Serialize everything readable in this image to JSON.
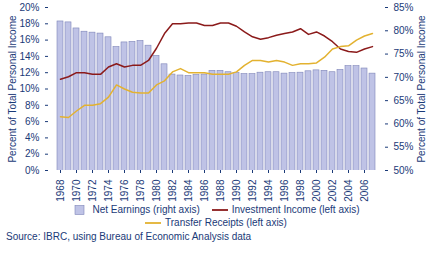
{
  "chart_data": {
    "type": "combo",
    "y_label": "Percent of Total Personal Income",
    "y2_label": "Percent of Total Personal Income",
    "source": "Source: IBRC, using Bureau of Economic Analysis data",
    "x": [
      1968,
      1969,
      1970,
      1971,
      1972,
      1973,
      1974,
      1975,
      1976,
      1977,
      1978,
      1979,
      1980,
      1981,
      1982,
      1983,
      1984,
      1985,
      1986,
      1987,
      1988,
      1989,
      1990,
      1991,
      1992,
      1993,
      1994,
      1995,
      1996,
      1997,
      1998,
      1999,
      2000,
      2001,
      2002,
      2003,
      2004,
      2005,
      2006,
      2007
    ],
    "xticks": [
      1968,
      1970,
      1972,
      1974,
      1976,
      1978,
      1980,
      1982,
      1984,
      1986,
      1988,
      1990,
      1992,
      1994,
      1996,
      1998,
      2000,
      2002,
      2004,
      2006
    ],
    "ylim": [
      0,
      20
    ],
    "yticks": [
      {
        "value": 0,
        "label": "0%"
      },
      {
        "value": 2,
        "label": "2%"
      },
      {
        "value": 4,
        "label": "4%"
      },
      {
        "value": 6,
        "label": "6%"
      },
      {
        "value": 8,
        "label": "8%"
      },
      {
        "value": 10,
        "label": "10%"
      },
      {
        "value": 12,
        "label": "12%"
      },
      {
        "value": 14,
        "label": "14%"
      },
      {
        "value": 16,
        "label": "16%"
      },
      {
        "value": 18,
        "label": "18%"
      },
      {
        "value": 20,
        "label": "20%"
      }
    ],
    "y2lim": [
      50,
      85
    ],
    "y2ticks": [
      {
        "value": 50,
        "label": "50%"
      },
      {
        "value": 55,
        "label": "55%"
      },
      {
        "value": 60,
        "label": "60%"
      },
      {
        "value": 65,
        "label": "65%"
      },
      {
        "value": 70,
        "label": "70%"
      },
      {
        "value": 75,
        "label": "75%"
      },
      {
        "value": 80,
        "label": "80%"
      },
      {
        "value": 85,
        "label": "85%"
      }
    ],
    "grid": false,
    "legend": "bottom",
    "series": [
      {
        "name": "Net Earnings (right axis)",
        "type": "bar",
        "axis": "y2",
        "color": "#bfc3e6",
        "values": [
          82,
          81.8,
          80.5,
          79.8,
          79.6,
          79.4,
          78.6,
          76.5,
          77.5,
          77.6,
          77.8,
          76.8,
          74.6,
          72.8,
          70.6,
          70.4,
          70.3,
          70.5,
          70.6,
          71.4,
          71.4,
          71.1,
          70.9,
          70.7,
          70.7,
          71.0,
          71.1,
          71.1,
          70.8,
          70.9,
          71.0,
          71.3,
          71.5,
          71.4,
          71.1,
          71.6,
          72.4,
          72.4,
          71.9,
          70.8
        ]
      },
      {
        "name": "Investment Income (left axis)",
        "type": "line",
        "color": "#8b1a1a",
        "values": [
          11.2,
          11.5,
          12.0,
          12.0,
          11.8,
          11.8,
          12.7,
          13.1,
          12.7,
          12.9,
          12.9,
          13.5,
          15.0,
          16.8,
          18.0,
          18.0,
          18.1,
          18.1,
          17.8,
          17.8,
          18.1,
          18.1,
          17.7,
          17.0,
          16.4,
          16.1,
          16.3,
          16.6,
          16.8,
          17.0,
          17.4,
          16.7,
          17.0,
          16.5,
          15.8,
          14.9,
          14.6,
          14.5,
          14.9,
          15.2
        ]
      },
      {
        "name": "Transfer Receipts (left axis)",
        "type": "line",
        "color": "#e3b230",
        "values": [
          6.6,
          6.5,
          7.3,
          8.0,
          8.0,
          8.2,
          9.0,
          10.5,
          10.0,
          9.6,
          9.5,
          9.5,
          10.5,
          11.0,
          12.1,
          12.5,
          12.0,
          12.0,
          12.0,
          11.8,
          11.8,
          11.8,
          12.1,
          12.9,
          13.5,
          13.5,
          13.3,
          13.5,
          13.3,
          12.9,
          13.1,
          13.1,
          13.2,
          13.9,
          14.9,
          15.2,
          15.3,
          16.0,
          16.5,
          16.8
        ]
      }
    ]
  }
}
